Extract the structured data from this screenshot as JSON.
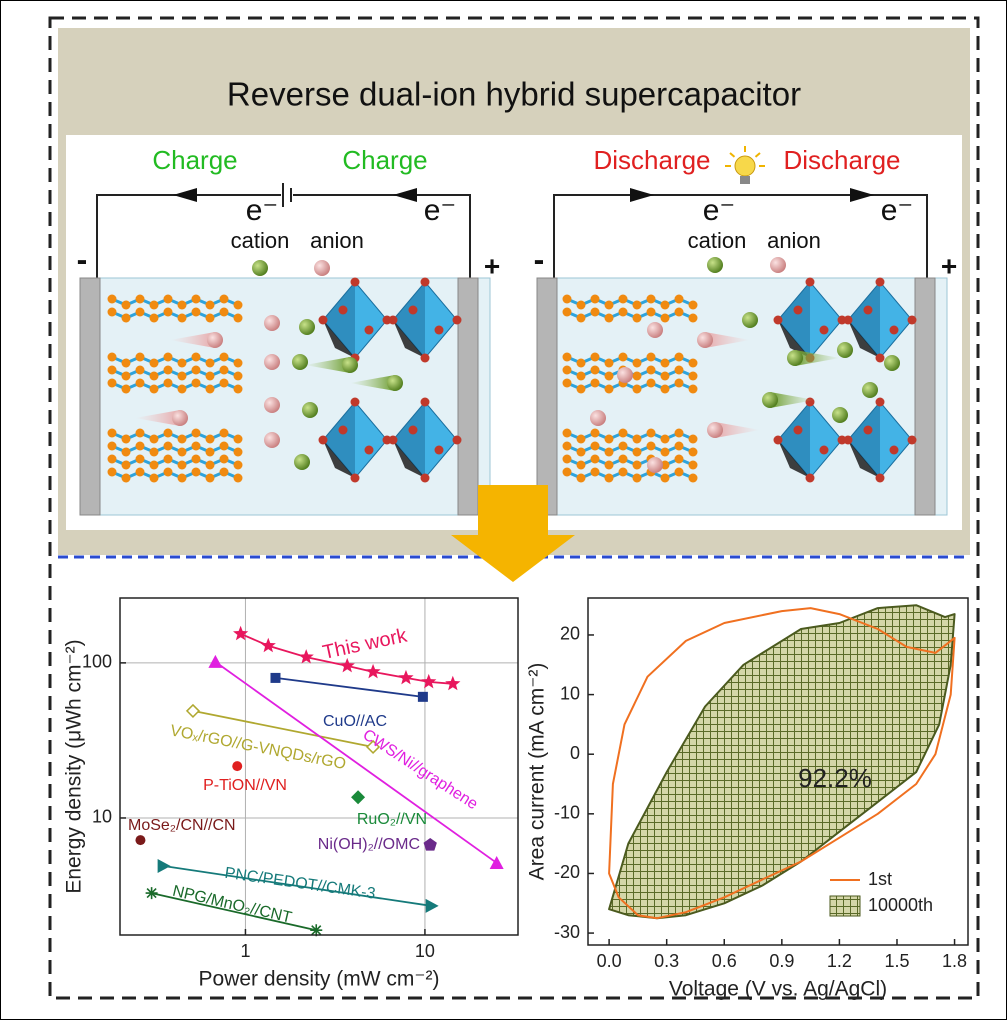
{
  "diagram": {
    "title": "Reverse dual-ion hybrid supercapacitor",
    "charge": {
      "labels": [
        "Charge",
        "Charge"
      ],
      "electrons": [
        "e⁻",
        "e⁻"
      ],
      "ions": [
        "cation",
        "anion"
      ],
      "poles": [
        "-",
        "+"
      ]
    },
    "discharge": {
      "labels": [
        "Discharge",
        "Discharge"
      ],
      "electrons": [
        "e⁻",
        "e⁻"
      ],
      "ions": [
        "cation",
        "anion"
      ],
      "poles": [
        "-",
        "+"
      ]
    }
  },
  "chart_data": [
    {
      "type": "scatter",
      "xlabel": "Power density (mW cm⁻²)",
      "ylabel": "Energy density (μWh cm⁻²)",
      "xscale": "log",
      "yscale": "log",
      "xlim": [
        0.2,
        33
      ],
      "ylim": [
        1.76,
        262
      ],
      "xticks": [
        1,
        10
      ],
      "yticks": [
        10,
        100
      ],
      "grid": true,
      "series": [
        {
          "name": "This work",
          "color": "#e8175d",
          "marker": "star",
          "x": [
            0.94,
            1.34,
            2.18,
            3.69,
            5.14,
            7.84,
            10.5,
            14.3
          ],
          "values": [
            154,
            129,
            109,
            95.6,
            87.5,
            80,
            75.4,
            73.3
          ]
        },
        {
          "name": "CuO//AC",
          "color": "#1f3a8a",
          "marker": "square",
          "x": [
            1.47,
            9.74
          ],
          "values": [
            80,
            60.4
          ]
        },
        {
          "name": "VOₓ/rGO//G-VNQDs/rGO",
          "color": "#b0a830",
          "marker": "diamond-open",
          "x": [
            0.51,
            5.14
          ],
          "values": [
            49,
            28.7
          ]
        },
        {
          "name": "CWS/Ni//graphene",
          "color": "#e020e0",
          "marker": "triangle",
          "x": [
            0.68,
            25.1
          ],
          "values": [
            101.5,
            5.13
          ]
        },
        {
          "name": "P-TiON//VN",
          "color": "#e02020",
          "marker": "circle",
          "x": [
            0.9
          ],
          "values": [
            21.6
          ]
        },
        {
          "name": "RuO₂//VN",
          "color": "#1a8a3a",
          "marker": "diamond",
          "x": [
            4.24
          ],
          "values": [
            13.6
          ]
        },
        {
          "name": "MoSe₂/CN//CN",
          "color": "#7a1a1a",
          "marker": "circle",
          "x": [
            0.26
          ],
          "values": [
            7.2
          ]
        },
        {
          "name": "Ni(OH)₂//OMC",
          "color": "#6a2a8a",
          "marker": "pentagon",
          "x": [
            10.7
          ],
          "values": [
            6.7
          ]
        },
        {
          "name": "PNC/PEDOT//CMK-3",
          "color": "#157a7a",
          "marker": "triangle-right",
          "x": [
            0.35,
            10.9
          ],
          "values": [
            4.9,
            2.71
          ]
        },
        {
          "name": "NPG/MnO₂//CNT",
          "color": "#1a6a2a",
          "marker": "asterisk",
          "x": [
            0.3,
            2.48
          ],
          "values": [
            3.28,
            1.89
          ]
        }
      ]
    },
    {
      "type": "line",
      "xlabel": "Voltage (V vs. Ag/AgCl)",
      "ylabel": "Area current (mA cm⁻²)",
      "xlim": [
        -0.11,
        1.87
      ],
      "ylim": [
        -32,
        26.2
      ],
      "xticks": [
        {
          "value": 0,
          "label": "0.0"
        },
        0.3,
        0.6,
        0.9,
        1.2,
        1.5,
        1.8
      ],
      "yticks": [
        -30,
        -20,
        -10,
        0,
        10,
        20
      ],
      "annotations": [
        "92.2%"
      ],
      "legend": "lower right",
      "series": [
        {
          "name": "1st",
          "color": "#f07020",
          "fill": "none",
          "x": [
            0,
            0.02,
            0.08,
            0.2,
            0.4,
            0.6,
            0.9,
            1.05,
            1.2,
            1.4,
            1.55,
            1.7,
            1.8,
            1.78,
            1.7,
            1.6,
            1.4,
            1.2,
            1.0,
            0.8,
            0.6,
            0.4,
            0.25,
            0.15,
            0.05
          ],
          "values": [
            -20,
            -5,
            5,
            13,
            19,
            22,
            24,
            24.5,
            23.5,
            21,
            18,
            17,
            19.5,
            10,
            0,
            -5,
            -10,
            -14,
            -18,
            -21,
            -24,
            -26.5,
            -27.5,
            -27,
            -24
          ]
        },
        {
          "name": "10000th",
          "color": "#4b5a1e",
          "fill": "hatch",
          "x": [
            0,
            0.1,
            0.3,
            0.5,
            0.7,
            0.8,
            1.0,
            1.2,
            1.4,
            1.6,
            1.75,
            1.8,
            1.78,
            1.72,
            1.6,
            1.4,
            1.2,
            1.0,
            0.8,
            0.6,
            0.4,
            0.25,
            0.1
          ],
          "values": [
            -26,
            -15,
            -3,
            8,
            15,
            17,
            21,
            22,
            24.5,
            25,
            23,
            23.5,
            15,
            5,
            -3,
            -8,
            -13,
            -18,
            -22,
            -25,
            -27,
            -27.5,
            -27
          ]
        }
      ]
    }
  ]
}
